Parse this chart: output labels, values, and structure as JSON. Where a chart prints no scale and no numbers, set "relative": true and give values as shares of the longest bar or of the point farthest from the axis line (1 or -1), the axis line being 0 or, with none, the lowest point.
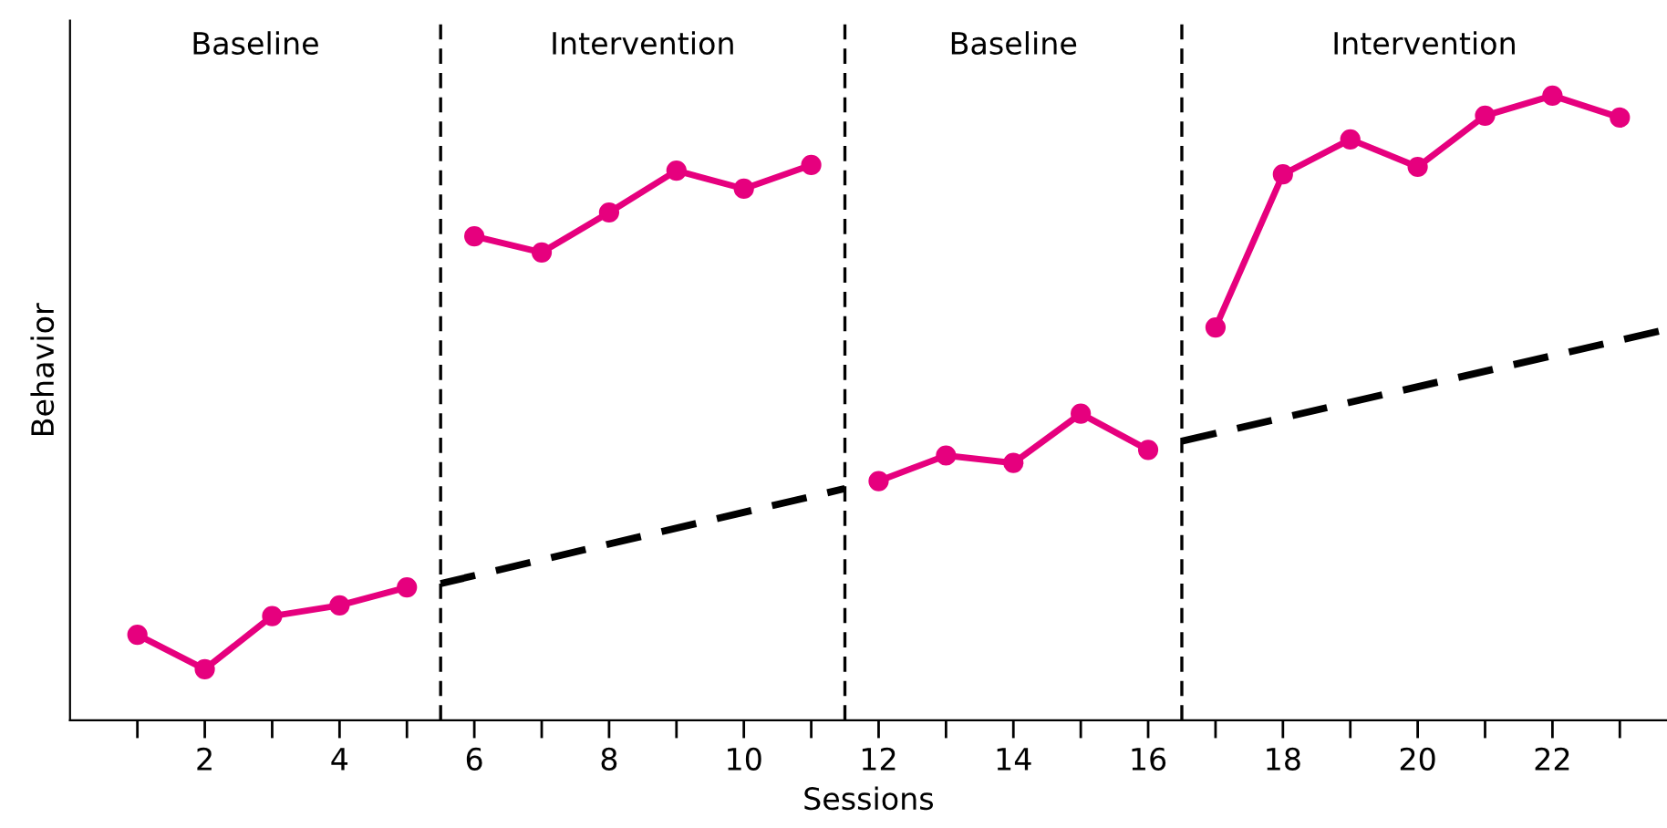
{
  "chart_data": {
    "type": "line",
    "relative": true,
    "xlabel": "Sessions",
    "ylabel": "Behavior",
    "xlim": [
      0,
      23.7
    ],
    "xticks": [
      {
        "value": 1,
        "label": null
      },
      2,
      {
        "value": 3,
        "label": null
      },
      4,
      {
        "value": 5,
        "label": null
      },
      6,
      {
        "value": 7,
        "label": null
      },
      8,
      {
        "value": 9,
        "label": null
      },
      10,
      {
        "value": 11,
        "label": null
      },
      12,
      {
        "value": 13,
        "label": null
      },
      14,
      {
        "value": 15,
        "label": null
      },
      16,
      {
        "value": 17,
        "label": null
      },
      18,
      {
        "value": 19,
        "label": null
      },
      20,
      {
        "value": 21,
        "label": null
      },
      22,
      {
        "value": 23,
        "label": null
      }
    ],
    "annotations": [
      "Baseline",
      "Intervention",
      "Baseline",
      "Intervention"
    ],
    "ref_lines": [
      {
        "axis": "x",
        "value": 5.5,
        "color": "#000000",
        "line_style": "dashed"
      },
      {
        "axis": "x",
        "value": 11.5,
        "color": "#000000",
        "line_style": "dashed"
      },
      {
        "axis": "x",
        "value": 16.5,
        "color": "#000000",
        "line_style": "dashed"
      }
    ],
    "grid": false,
    "legend": false,
    "series": [
      {
        "color": "#e6007e",
        "marker": "circle",
        "line_style": "solid",
        "x": [
          1,
          2,
          3,
          4,
          5,
          5.5,
          6,
          7,
          8,
          9,
          10,
          11,
          11.5,
          12,
          13,
          14,
          15,
          16,
          16.5,
          17,
          18,
          19,
          20,
          21,
          22,
          23
        ],
        "values": [
          0.137,
          0.082,
          0.167,
          0.184,
          0.213,
          null,
          0.775,
          0.749,
          0.813,
          0.88,
          0.851,
          0.889,
          null,
          0.383,
          0.424,
          0.412,
          0.491,
          0.433,
          null,
          0.629,
          0.874,
          0.93,
          0.886,
          0.968,
          1,
          0.965
        ]
      },
      {
        "color": "#000000",
        "marker": "none",
        "line_style": "dashed",
        "x": [
          5.5,
          11.5
        ],
        "values": [
          0.219,
          0.371
        ]
      },
      {
        "color": "#000000",
        "marker": "none",
        "line_style": "dashed",
        "x": [
          16.5,
          23.7
        ],
        "values": [
          0.447,
          0.626
        ]
      }
    ]
  }
}
